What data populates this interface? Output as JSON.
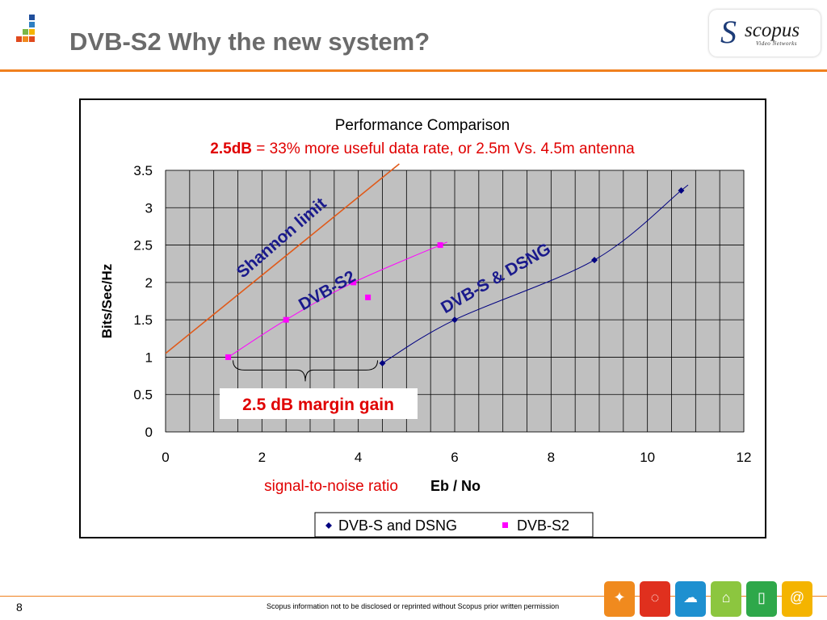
{
  "slide": {
    "title": "DVB-S2 Why the new system?",
    "page_number": "8",
    "footer": "Scopus information not to be disclosed or reprinted without Scopus prior written permission",
    "brand": {
      "name": "scopus",
      "tagline": "Video Networks"
    },
    "colors": {
      "accent": "#f0801e",
      "title": "#6b6b6b"
    }
  },
  "chart_data": {
    "type": "scatter",
    "title": "Performance Comparison",
    "subtitle_bold": "2.5dB",
    "subtitle_rest": " = 33% more useful data rate, or 2.5m Vs. 4.5m antenna",
    "xlabel_left": "signal-to-noise ratio",
    "xlabel": "Eb / No",
    "ylabel": "Bits/Sec/Hz",
    "xlim": [
      0,
      12
    ],
    "ylim": [
      0,
      3.5
    ],
    "xticks": [
      "0",
      "2",
      "4",
      "6",
      "8",
      "10",
      "12"
    ],
    "yticks": [
      "0",
      "0.5",
      "1",
      "1.5",
      "2",
      "2.5",
      "3",
      "3.5"
    ],
    "grid": true,
    "plot_background": "#c0c0c0",
    "legend_position": "bottom",
    "series": [
      {
        "name": "DVB-S and DSNG",
        "color": "#000080",
        "marker": "diamond",
        "x": [
          4.5,
          6.0,
          8.9,
          10.7
        ],
        "y": [
          0.92,
          1.5,
          2.3,
          3.23
        ]
      },
      {
        "name": "DVB-S2",
        "color": "#ff00ff",
        "marker": "square",
        "x": [
          1.3,
          2.5,
          3.9,
          5.7
        ],
        "y": [
          1.0,
          1.5,
          2.0,
          2.5
        ]
      }
    ],
    "outlier_point": {
      "x": 4.2,
      "y": 1.8,
      "color": "#ff00ff"
    },
    "shannon_line": {
      "label": "Shannon limit",
      "color": "#e05a1a",
      "x": [
        0,
        4.85
      ],
      "y": [
        1.05,
        3.5
      ]
    },
    "annotations": {
      "shannon": "Shannon limit",
      "dvbs2": "DVB-S2",
      "dvbs": "DVB-S & DSNG",
      "margin": "2.5 dB margin gain"
    },
    "annotation_color": "#1a1a8c",
    "margin_color": "#e00000"
  }
}
